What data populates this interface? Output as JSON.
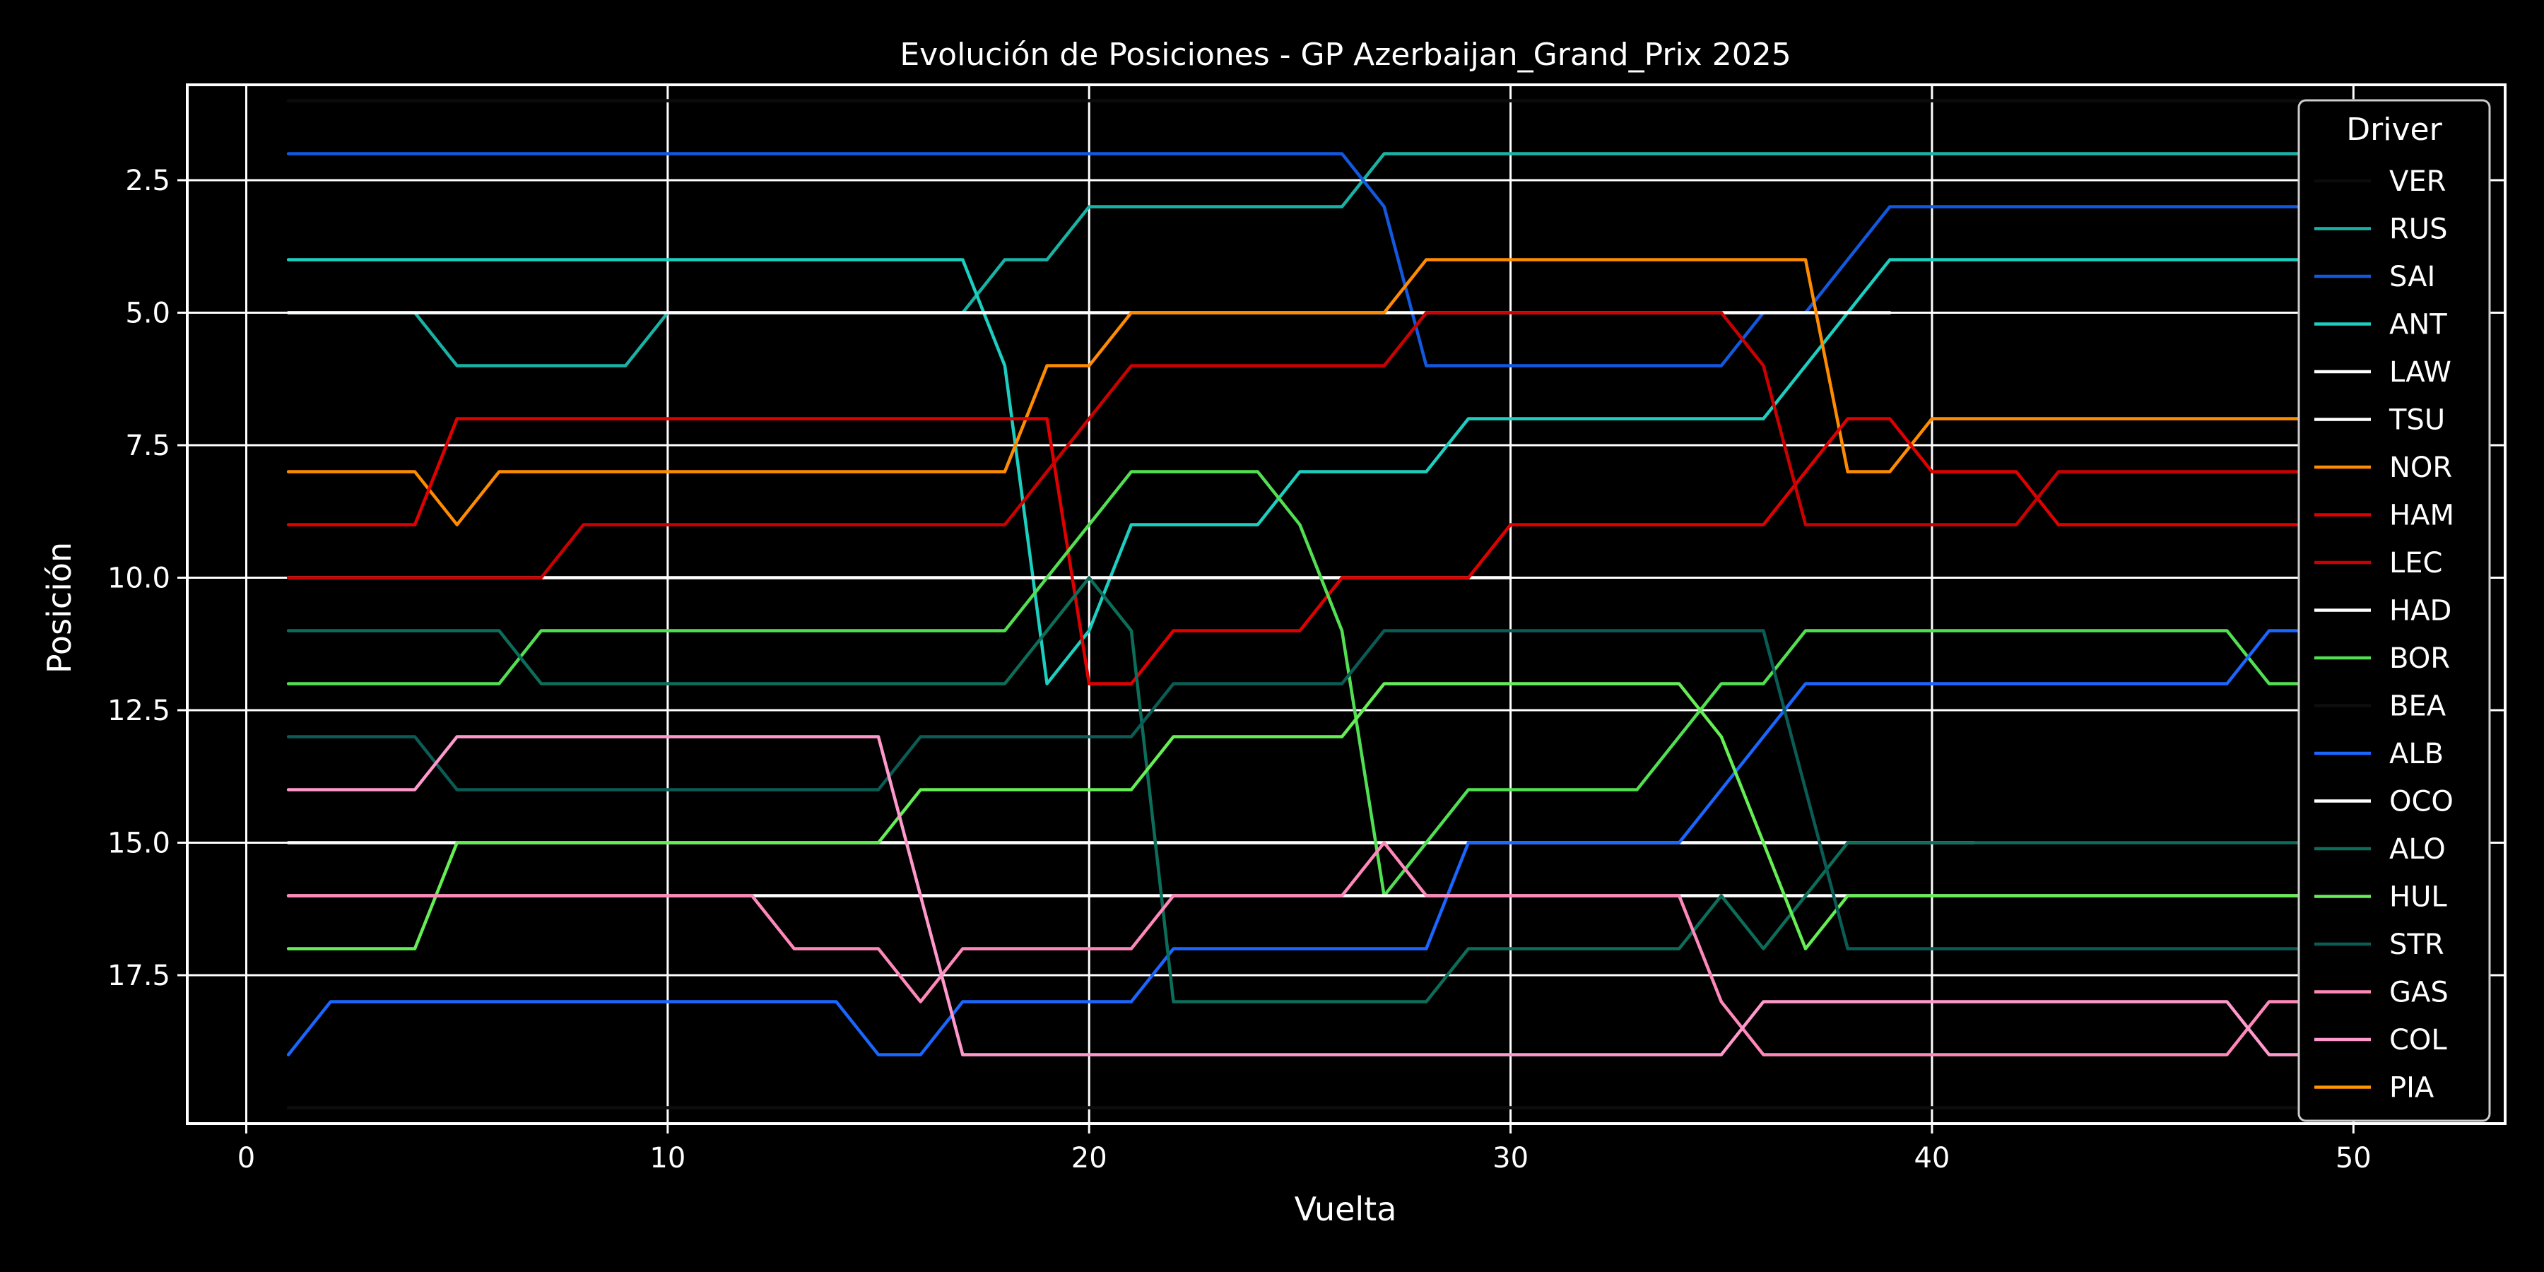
{
  "chart_data": {
    "type": "line",
    "title": "Evolución de Posiciones - GP Azerbaijan_Grand_Prix 2025",
    "xlabel": "Vuelta",
    "ylabel": "Posición",
    "xlim": [
      -1.4,
      53.6
    ],
    "ylim": [
      20.3,
      0.7
    ],
    "y_inverted": true,
    "xticks": [
      0,
      10,
      20,
      30,
      40,
      50
    ],
    "yticks": [
      2.5,
      5.0,
      7.5,
      10.0,
      12.5,
      15.0,
      17.5
    ],
    "grid": true,
    "legend": {
      "title": "Driver",
      "position": "top-right"
    },
    "series": [
      {
        "name": "VER",
        "color": "#0b0b0b",
        "points": [
          [
            1,
            1
          ],
          [
            51,
            1
          ]
        ]
      },
      {
        "name": "RUS",
        "color": "#19b3a6",
        "points": [
          [
            1,
            5
          ],
          [
            4,
            5
          ],
          [
            5,
            6
          ],
          [
            9,
            6
          ],
          [
            10,
            5
          ],
          [
            17,
            5
          ],
          [
            18,
            4
          ],
          [
            19,
            4
          ],
          [
            20,
            3
          ],
          [
            26,
            3
          ],
          [
            27,
            2
          ],
          [
            51,
            2
          ]
        ]
      },
      {
        "name": "SAI",
        "color": "#1259e0",
        "points": [
          [
            1,
            2
          ],
          [
            26,
            2
          ],
          [
            27,
            3
          ],
          [
            28,
            6
          ],
          [
            35,
            6
          ],
          [
            36,
            5
          ],
          [
            37,
            5
          ],
          [
            39,
            3
          ],
          [
            51,
            3
          ]
        ]
      },
      {
        "name": "ANT",
        "color": "#1ccfc0",
        "points": [
          [
            1,
            4
          ],
          [
            17,
            4
          ],
          [
            18,
            6
          ],
          [
            19,
            12
          ],
          [
            20,
            11
          ],
          [
            21,
            9
          ],
          [
            24,
            9
          ],
          [
            25,
            8
          ],
          [
            28,
            8
          ],
          [
            29,
            7
          ],
          [
            36,
            7
          ],
          [
            39,
            4
          ],
          [
            51,
            4
          ]
        ]
      },
      {
        "name": "LAW",
        "color": "#ffffff",
        "points": [
          [
            1,
            5
          ],
          [
            5,
            5
          ],
          [
            9.5,
            5
          ],
          [
            17,
            5
          ],
          [
            19,
            5
          ],
          [
            21,
            5
          ],
          [
            38,
            5
          ],
          [
            39,
            5
          ]
        ]
      },
      {
        "name": "TSU",
        "color": "#ffffff",
        "points": [
          [
            1,
            10
          ],
          [
            8,
            10
          ],
          [
            18,
            10
          ],
          [
            21,
            10
          ],
          [
            25,
            10
          ],
          [
            30,
            10
          ]
        ]
      },
      {
        "name": "NOR",
        "color": "#ff8c00",
        "points": [
          [
            1,
            8
          ],
          [
            4,
            8
          ],
          [
            5,
            9
          ],
          [
            6,
            8
          ],
          [
            18,
            8
          ],
          [
            19,
            6
          ],
          [
            20,
            6
          ],
          [
            21,
            5
          ],
          [
            27,
            5
          ],
          [
            28,
            4
          ],
          [
            37,
            4
          ],
          [
            38,
            8
          ],
          [
            39,
            8
          ],
          [
            40,
            7
          ],
          [
            51,
            7
          ]
        ]
      },
      {
        "name": "HAM",
        "color": "#e00000",
        "points": [
          [
            1,
            9
          ],
          [
            4,
            9
          ],
          [
            5,
            7
          ],
          [
            19,
            7
          ],
          [
            20,
            12
          ],
          [
            21,
            12
          ],
          [
            22,
            11
          ],
          [
            25,
            11
          ],
          [
            26,
            10
          ],
          [
            29,
            10
          ],
          [
            30,
            9
          ],
          [
            36,
            9
          ],
          [
            38,
            7
          ],
          [
            39,
            7
          ],
          [
            40,
            8
          ],
          [
            42,
            8
          ],
          [
            43,
            9
          ],
          [
            51,
            9
          ]
        ]
      },
      {
        "name": "LEC",
        "color": "#cc0000",
        "points": [
          [
            1,
            10
          ],
          [
            7,
            10
          ],
          [
            8,
            9
          ],
          [
            18,
            9
          ],
          [
            21,
            6
          ],
          [
            27,
            6
          ],
          [
            28,
            5
          ],
          [
            35,
            5
          ],
          [
            36,
            6
          ],
          [
            37,
            9
          ],
          [
            42,
            9
          ],
          [
            43,
            8
          ],
          [
            51,
            8
          ]
        ]
      },
      {
        "name": "HAD",
        "color": "#ffffff",
        "points": [
          [
            1,
            15
          ],
          [
            5,
            15
          ],
          [
            15,
            15
          ],
          [
            21,
            15
          ],
          [
            27,
            15
          ],
          [
            34,
            15
          ],
          [
            41,
            15
          ]
        ]
      },
      {
        "name": "BOR",
        "color": "#52e052",
        "points": [
          [
            1,
            12
          ],
          [
            6,
            12
          ],
          [
            7,
            11
          ],
          [
            18,
            11
          ],
          [
            21,
            8
          ],
          [
            24,
            8
          ],
          [
            25,
            9
          ],
          [
            26,
            11
          ],
          [
            27,
            16
          ],
          [
            29,
            14
          ],
          [
            33,
            14
          ],
          [
            35,
            12
          ],
          [
            36,
            12
          ],
          [
            37,
            11
          ],
          [
            47,
            11
          ],
          [
            48,
            12
          ],
          [
            51,
            12
          ]
        ]
      },
      {
        "name": "BEA",
        "color": "#0d0d0d",
        "points": [
          [
            1,
            20
          ],
          [
            51,
            20
          ]
        ]
      },
      {
        "name": "ALB",
        "color": "#1a66ff",
        "points": [
          [
            1,
            19
          ],
          [
            2,
            18
          ],
          [
            14,
            18
          ],
          [
            15,
            19
          ],
          [
            16,
            19
          ],
          [
            17,
            18
          ],
          [
            21,
            18
          ],
          [
            22,
            17
          ],
          [
            28,
            17
          ],
          [
            29,
            15
          ],
          [
            34,
            15
          ],
          [
            37,
            12
          ],
          [
            47,
            12
          ],
          [
            48,
            11
          ],
          [
            51,
            11
          ]
        ]
      },
      {
        "name": "OCO",
        "color": "#ffffff",
        "points": [
          [
            1,
            16
          ],
          [
            51,
            16
          ]
        ]
      },
      {
        "name": "ALO",
        "color": "#0c6e5a",
        "points": [
          [
            1,
            11
          ],
          [
            6,
            11
          ],
          [
            7,
            12
          ],
          [
            18,
            12
          ],
          [
            20,
            10
          ],
          [
            21,
            11
          ],
          [
            22,
            18
          ],
          [
            28,
            18
          ],
          [
            29,
            17
          ],
          [
            34,
            17
          ],
          [
            35,
            16
          ],
          [
            36,
            17
          ],
          [
            38,
            15
          ],
          [
            51,
            15
          ]
        ]
      },
      {
        "name": "HUL",
        "color": "#66ee55",
        "points": [
          [
            1,
            17
          ],
          [
            4,
            17
          ],
          [
            5,
            15
          ],
          [
            15,
            15
          ],
          [
            16,
            14
          ],
          [
            21,
            14
          ],
          [
            22,
            13
          ],
          [
            26,
            13
          ],
          [
            27,
            12
          ],
          [
            34,
            12
          ],
          [
            35,
            13
          ],
          [
            37,
            17
          ],
          [
            38,
            16
          ],
          [
            51,
            16
          ]
        ]
      },
      {
        "name": "STR",
        "color": "#0a5c55",
        "points": [
          [
            1,
            13
          ],
          [
            4,
            13
          ],
          [
            5,
            14
          ],
          [
            15,
            14
          ],
          [
            16,
            13
          ],
          [
            21,
            13
          ],
          [
            22,
            12
          ],
          [
            26,
            12
          ],
          [
            27,
            11
          ],
          [
            36,
            11
          ],
          [
            38,
            17
          ],
          [
            51,
            17
          ]
        ]
      },
      {
        "name": "GAS",
        "color": "#ff88bb",
        "points": [
          [
            1,
            16
          ],
          [
            12,
            16
          ],
          [
            13,
            17
          ],
          [
            15,
            17
          ],
          [
            16,
            18
          ],
          [
            17,
            17
          ],
          [
            21,
            17
          ],
          [
            22,
            16
          ],
          [
            26,
            16
          ],
          [
            27,
            15
          ],
          [
            28,
            16
          ],
          [
            34,
            16
          ],
          [
            35,
            18
          ],
          [
            36,
            19
          ],
          [
            47,
            19
          ],
          [
            48,
            18
          ],
          [
            51,
            18
          ]
        ]
      },
      {
        "name": "COL",
        "color": "#ff99cc",
        "points": [
          [
            1,
            14
          ],
          [
            4,
            14
          ],
          [
            5,
            13
          ],
          [
            15,
            13
          ],
          [
            17,
            19
          ],
          [
            35,
            19
          ],
          [
            36,
            18
          ],
          [
            47,
            18
          ],
          [
            48,
            19
          ],
          [
            50,
            19
          ]
        ]
      },
      {
        "name": "PIA",
        "color": "#ff9500",
        "points": [
          [
            51,
            7
          ]
        ]
      }
    ]
  }
}
